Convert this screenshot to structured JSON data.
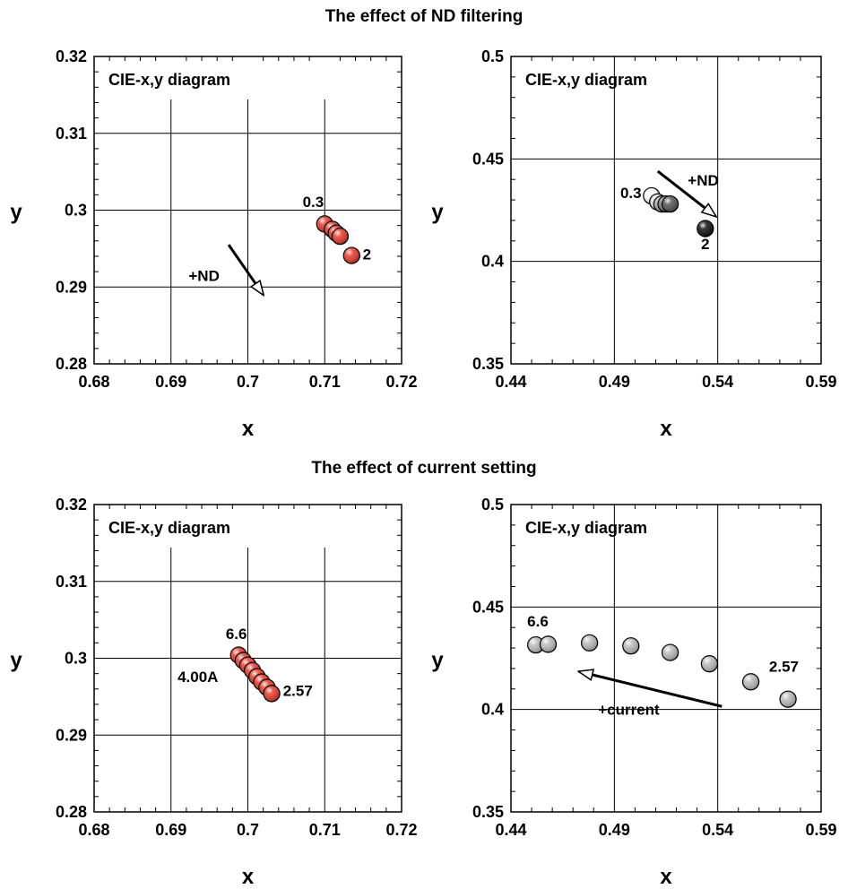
{
  "sections": [
    {
      "title": "The effect of ND filtering"
    },
    {
      "title": "The effect of current setting"
    }
  ],
  "chart_data": [
    {
      "type": "scatter",
      "panel_label": "CIE-x,y diagram",
      "xlabel": "x",
      "ylabel": "y",
      "xlim": [
        0.68,
        0.72
      ],
      "ylim": [
        0.28,
        0.32
      ],
      "xticks": [
        "0.68",
        "0.69",
        "0.7",
        "0.71",
        "0.72"
      ],
      "yticks": [
        "0.28",
        "0.29",
        "0.3",
        "0.31",
        "0.32"
      ],
      "xtick_values": [
        0.68,
        0.69,
        0.7,
        0.71,
        0.72
      ],
      "ytick_values": [
        0.28,
        0.29,
        0.3,
        0.31,
        0.32
      ],
      "grid": true,
      "points": [
        {
          "x": 0.71,
          "y": 0.2982,
          "color": "#e8392a"
        },
        {
          "x": 0.711,
          "y": 0.2975,
          "color": "#e8392a"
        },
        {
          "x": 0.7115,
          "y": 0.297,
          "color": "#e8392a"
        },
        {
          "x": 0.712,
          "y": 0.2966,
          "color": "#e8392a"
        },
        {
          "x": 0.7135,
          "y": 0.2941,
          "color": "#e8392a"
        }
      ],
      "annotations": [
        {
          "text": "0.3",
          "x": 0.7085,
          "y": 0.3004
        },
        {
          "text": "2",
          "x": 0.7155,
          "y": 0.2936
        },
        {
          "text": "+ND",
          "x": 0.6943,
          "y": 0.2908
        }
      ],
      "arrow": {
        "from": [
          0.6975,
          0.2955
        ],
        "to": [
          0.702,
          0.289
        ]
      }
    },
    {
      "type": "scatter",
      "panel_label": "CIE-x,y diagram",
      "xlabel": "x",
      "ylabel": "y",
      "xlim": [
        0.44,
        0.59
      ],
      "ylim": [
        0.35,
        0.5
      ],
      "xticks": [
        "0.44",
        "0.49",
        "0.54",
        "0.59"
      ],
      "yticks": [
        "0.35",
        "0.4",
        "0.45",
        "0.5"
      ],
      "xtick_values": [
        0.44,
        0.49,
        0.54,
        0.59
      ],
      "ytick_values": [
        0.35,
        0.4,
        0.45,
        0.5
      ],
      "grid": true,
      "points": [
        {
          "x": 0.508,
          "y": 0.432,
          "color": "#ffffff"
        },
        {
          "x": 0.511,
          "y": 0.429,
          "color": "#dddddd"
        },
        {
          "x": 0.513,
          "y": 0.428,
          "color": "#aaaaaa"
        },
        {
          "x": 0.515,
          "y": 0.428,
          "color": "#777777"
        },
        {
          "x": 0.517,
          "y": 0.428,
          "color": "#555555"
        },
        {
          "x": 0.534,
          "y": 0.416,
          "color": "#111111"
        }
      ],
      "annotations": [
        {
          "text": "0.3",
          "x": 0.498,
          "y": 0.431
        },
        {
          "text": "+ND",
          "x": 0.533,
          "y": 0.437
        },
        {
          "text": "2",
          "x": 0.534,
          "y": 0.406
        }
      ],
      "arrow": {
        "from": [
          0.511,
          0.444
        ],
        "to": [
          0.539,
          0.422
        ]
      }
    },
    {
      "type": "scatter",
      "panel_label": "CIE-x,y diagram",
      "xlabel": "x",
      "ylabel": "y",
      "xlim": [
        0.68,
        0.72
      ],
      "ylim": [
        0.28,
        0.32
      ],
      "xticks": [
        "0.68",
        "0.69",
        "0.7",
        "0.71",
        "0.72"
      ],
      "yticks": [
        "0.28",
        "0.29",
        "0.3",
        "0.31",
        "0.32"
      ],
      "xtick_values": [
        0.68,
        0.69,
        0.7,
        0.71,
        0.72
      ],
      "ytick_values": [
        0.28,
        0.29,
        0.3,
        0.31,
        0.32
      ],
      "grid": true,
      "points": [
        {
          "x": 0.6988,
          "y": 0.3004,
          "color": "#e8392a"
        },
        {
          "x": 0.6994,
          "y": 0.2997,
          "color": "#e8392a"
        },
        {
          "x": 0.7,
          "y": 0.2991,
          "color": "#e8392a"
        },
        {
          "x": 0.7006,
          "y": 0.2984,
          "color": "#e8392a"
        },
        {
          "x": 0.7012,
          "y": 0.2976,
          "color": "#e8392a"
        },
        {
          "x": 0.7018,
          "y": 0.2969,
          "color": "#e8392a"
        },
        {
          "x": 0.7025,
          "y": 0.2962,
          "color": "#e8392a"
        },
        {
          "x": 0.7031,
          "y": 0.2954,
          "color": "#e8392a"
        }
      ],
      "annotations": [
        {
          "text": "6.6",
          "x": 0.6985,
          "y": 0.3025
        },
        {
          "text": "4.00A",
          "x": 0.6935,
          "y": 0.2969
        },
        {
          "text": "2.57",
          "x": 0.7065,
          "y": 0.2951
        }
      ]
    },
    {
      "type": "scatter",
      "panel_label": "CIE-x,y diagram",
      "xlabel": "x",
      "ylabel": "y",
      "xlim": [
        0.44,
        0.59
      ],
      "ylim": [
        0.35,
        0.5
      ],
      "xticks": [
        "0.44",
        "0.49",
        "0.54",
        "0.59"
      ],
      "yticks": [
        "0.35",
        "0.4",
        "0.45",
        "0.5"
      ],
      "xtick_values": [
        0.44,
        0.49,
        0.54,
        0.59
      ],
      "ytick_values": [
        0.35,
        0.4,
        0.45,
        0.5
      ],
      "grid": true,
      "points": [
        {
          "x": 0.452,
          "y": 0.4315,
          "color": "#bbbbbb"
        },
        {
          "x": 0.458,
          "y": 0.4318,
          "color": "#bbbbbb"
        },
        {
          "x": 0.478,
          "y": 0.4325,
          "color": "#bbbbbb"
        },
        {
          "x": 0.498,
          "y": 0.431,
          "color": "#bbbbbb"
        },
        {
          "x": 0.517,
          "y": 0.4278,
          "color": "#bbbbbb"
        },
        {
          "x": 0.536,
          "y": 0.4223,
          "color": "#bbbbbb"
        },
        {
          "x": 0.556,
          "y": 0.4135,
          "color": "#bbbbbb"
        },
        {
          "x": 0.574,
          "y": 0.405,
          "color": "#bbbbbb"
        }
      ],
      "annotations": [
        {
          "text": "6.6",
          "x": 0.453,
          "y": 0.4405
        },
        {
          "text": "2.57",
          "x": 0.572,
          "y": 0.4185
        },
        {
          "text": "+current",
          "x": 0.497,
          "y": 0.3975
        }
      ],
      "arrow": {
        "from": [
          0.542,
          0.4015
        ],
        "to": [
          0.473,
          0.4185
        ]
      }
    }
  ]
}
